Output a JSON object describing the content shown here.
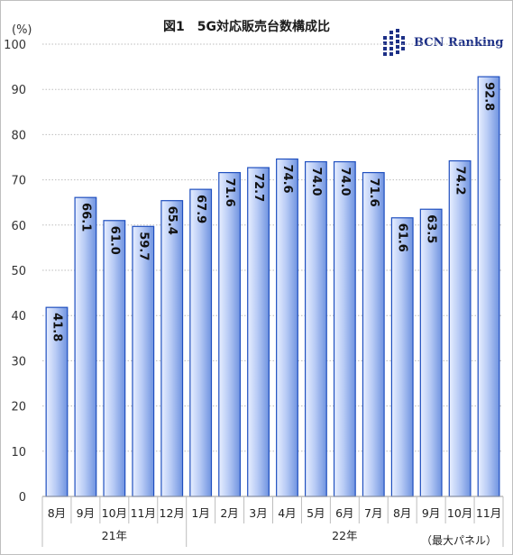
{
  "title": "図1　5G対応販売台数構成比",
  "logo_text": "BCN Ranking",
  "note": "（最大パネル）",
  "chart_data": {
    "type": "bar",
    "title": "図1　5G対応販売台数構成比",
    "ylabel": "(%)",
    "ylim": [
      0,
      100
    ],
    "yticks": [
      0,
      10,
      20,
      30,
      40,
      50,
      60,
      70,
      80,
      90,
      100
    ],
    "grid": true,
    "categories": [
      "8月",
      "9月",
      "10月",
      "11月",
      "12月",
      "1月",
      "2月",
      "3月",
      "4月",
      "5月",
      "6月",
      "7月",
      "8月",
      "9月",
      "10月",
      "11月"
    ],
    "groups": [
      {
        "label": "21年",
        "count": 5
      },
      {
        "label": "22年",
        "count": 11
      }
    ],
    "values": [
      41.8,
      66.1,
      61.0,
      59.7,
      65.4,
      67.9,
      71.6,
      72.7,
      74.6,
      74.0,
      74.0,
      71.6,
      61.6,
      63.5,
      74.2,
      92.8
    ],
    "value_labels": [
      "41.8",
      "66.1",
      "61.0",
      "59.7",
      "65.4",
      "67.9",
      "71.6",
      "72.7",
      "74.6",
      "74.0",
      "74.0",
      "71.6",
      "61.6",
      "63.5",
      "74.2",
      "92.8"
    ],
    "bar_color": "#9db6f0",
    "bar_edge_color": "#1f4fbf"
  }
}
